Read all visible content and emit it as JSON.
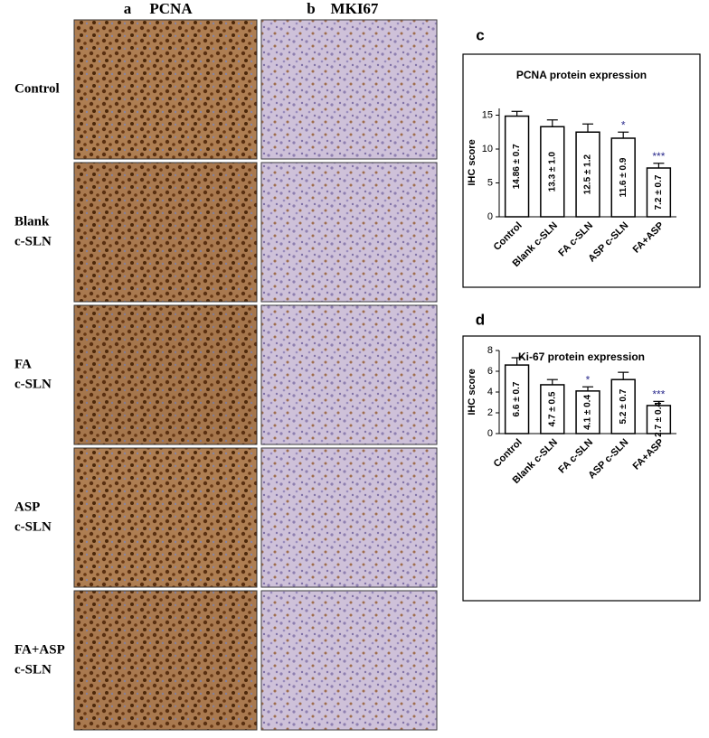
{
  "image_panels": [
    {
      "letter": "a",
      "title": "PCNA"
    },
    {
      "letter": "b",
      "title": "MKI67"
    }
  ],
  "row_labels": [
    [
      "Control"
    ],
    [
      "Blank",
      "c-SLN"
    ],
    [
      "FA",
      "c-SLN"
    ],
    [
      "ASP",
      "c-SLN"
    ],
    [
      "FA+ASP",
      "c-SLN"
    ]
  ],
  "chart_data": [
    {
      "type": "bar",
      "letter": "c",
      "title": "PCNA protein expression",
      "ylabel": "IHC score",
      "categories": [
        "Control",
        "Blank c-SLN",
        "FA c-SLN",
        "ASP c-SLN",
        "FA+ASP"
      ],
      "values": [
        14.86,
        13.3,
        12.5,
        11.6,
        7.2
      ],
      "errors": [
        0.7,
        1.0,
        1.2,
        0.9,
        0.7
      ],
      "value_labels": [
        "14.86 ± 0.7",
        "13.3 ± 1.0",
        "12.5 ± 1.2",
        "11.6 ± 0.9",
        "7.2 ± 0.7"
      ],
      "significance": [
        null,
        null,
        null,
        "*",
        "***"
      ],
      "color": "#ffffff",
      "significance_color": "#2b2b8c",
      "ylim": [
        0,
        16
      ],
      "yticks": [
        0,
        5,
        10,
        15
      ]
    },
    {
      "type": "bar",
      "letter": "d",
      "title": "Ki-67 protein expression",
      "ylabel": "IHC score",
      "categories": [
        "Control",
        "Blank c-SLN",
        "FA c-SLN",
        "ASP c-SLN",
        "FA+ASP"
      ],
      "values": [
        6.6,
        4.7,
        4.1,
        5.2,
        2.7
      ],
      "errors": [
        0.7,
        0.5,
        0.4,
        0.7,
        0.4
      ],
      "value_labels": [
        "6.6 ± 0.7",
        "4.7 ± 0.5",
        "4.1 ± 0.4",
        "5.2 ± 0.7",
        "2.7 ± 0.4"
      ],
      "significance": [
        null,
        null,
        "*",
        null,
        "***"
      ],
      "color": "#ffffff",
      "significance_color": "#2b2b8c",
      "ylim": [
        0,
        8
      ],
      "yticks": [
        0,
        2,
        4,
        6,
        8
      ]
    }
  ]
}
